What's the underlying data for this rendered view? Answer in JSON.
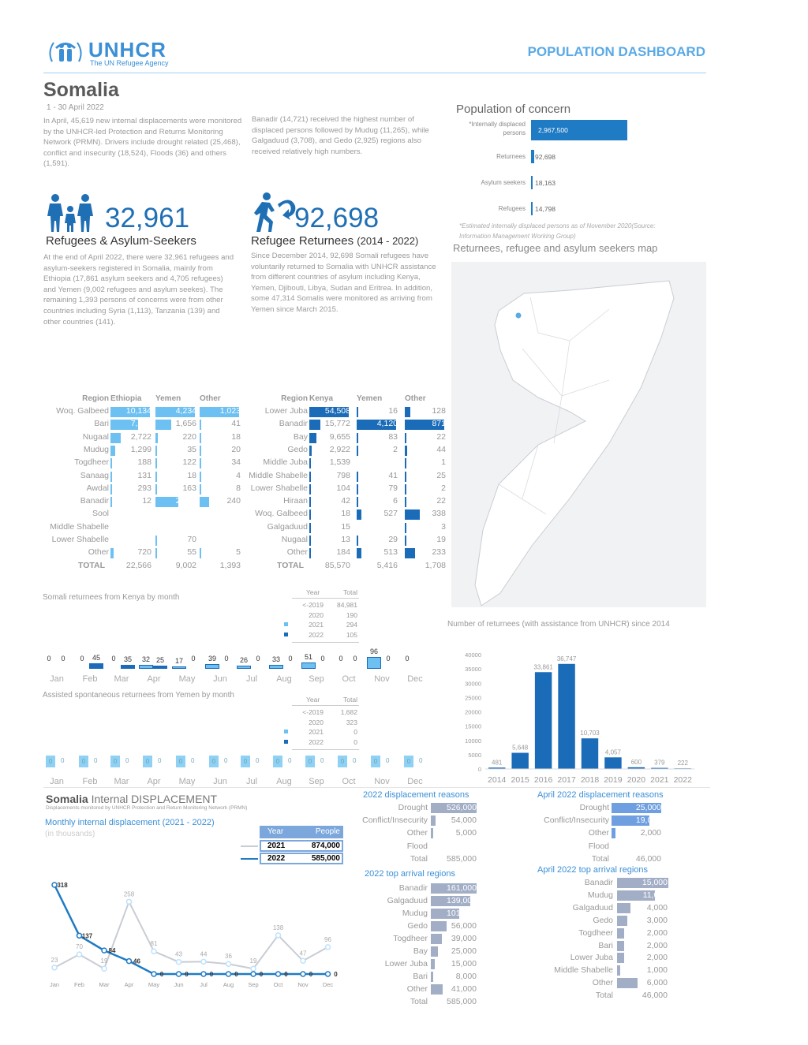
{
  "header": {
    "org": "UNHCR",
    "org_tagline": "The UN Refugee Agency",
    "dashboard_title": "POPULATION DASHBOARD"
  },
  "country": "Somalia",
  "period": "1 - 30 April 2022",
  "intro": {
    "col1": "In April, 45,619 new internal displacements were monitored by the UNHCR-led Protection and Returns Monitoring Network (PRMN). Drivers include drought related (25,468), conflict and insecurity (18,524), Floods (36) and others (1,591).",
    "col2": "Banadir (14,721) received the highest number of displaced persons followed by Mudug (11,265), while Galgaduud (3,708), and Gedo (2,925) regions also received relatively high numbers."
  },
  "stats": [
    {
      "value": "32,961",
      "title": "Refugees & Asylum-Seekers",
      "text": "At the end of April 2022, there were 32,961 refugees and asylum-seekers registered in Somalia, mainly from Ethiopia (17,861 asylum seekers and 4,705 refugees) and Yemen (9,002 refugees and asylum seekes). The remaining 1,393 persons of concerns were from other countries including Syria (1,113), Tanzania (139) and other countries (141)."
    },
    {
      "value": "92,698",
      "title": "Refugee Returnees",
      "title_suffix": "(2014 - 2022)",
      "text": "Since December 2014, 92,698 Somali refugees have voluntarily returned to Somalia with UNHCR assistance from different countries of asylum including Kenya, Yemen, Djibouti, Libya, Sudan and Eritrea. In addition, some 47,314 Somalis were monitored as arriving from Yemen since March 2015."
    }
  ],
  "population": {
    "title": "Population of concern",
    "items": [
      {
        "label": "*Internally displaced persons",
        "value": 2967500,
        "display": "2,967,500"
      },
      {
        "label": "Returnees",
        "value": 92698,
        "display": "92,698"
      },
      {
        "label": "Asylum seekers",
        "value": 18163,
        "display": "18,163"
      },
      {
        "label": "Refugees",
        "value": 14798,
        "display": "14,798"
      }
    ],
    "footnote": "*Estimated internally displaced persons as of November 2020(Source: Information Management Working Group)",
    "map_title": "Returnees, refugee and asylum seekers map"
  },
  "refugee_table": {
    "headers": [
      "Region",
      "Ethiopia",
      "Yemen",
      "Other"
    ],
    "rows": [
      [
        "Woq. Galbeed",
        10134,
        4234,
        1023
      ],
      [
        "Bari",
        7067,
        1656,
        41
      ],
      [
        "Nugaal",
        2722,
        220,
        18
      ],
      [
        "Mudug",
        1299,
        35,
        20
      ],
      [
        "Togdheer",
        188,
        122,
        34
      ],
      [
        "Sanaag",
        131,
        18,
        4
      ],
      [
        "Awdal",
        293,
        163,
        8
      ],
      [
        "Banadir",
        12,
        2427,
        240
      ],
      [
        "Sool",
        null,
        null,
        null
      ],
      [
        "Middle Shabelle",
        null,
        null,
        null
      ],
      [
        "Lower Shabelle",
        null,
        70,
        null
      ],
      [
        "Other",
        720,
        55,
        5
      ]
    ],
    "total": [
      "TOTAL",
      "22,566",
      "9,002",
      "1,393"
    ]
  },
  "returnee_table": {
    "headers": [
      "Region",
      "Kenya",
      "Yemen",
      "Other"
    ],
    "rows": [
      [
        "Lower Juba",
        54508,
        16,
        128
      ],
      [
        "Banadir",
        15772,
        4120,
        871
      ],
      [
        "Bay",
        9655,
        83,
        22
      ],
      [
        "Gedo",
        2922,
        2,
        44
      ],
      [
        "Middle Juba",
        1539,
        null,
        1
      ],
      [
        "Middle Shabelle",
        798,
        41,
        25
      ],
      [
        "Lower Shabelle",
        104,
        79,
        2
      ],
      [
        "Hiraan",
        42,
        6,
        22
      ],
      [
        "Woq. Galbeed",
        18,
        527,
        338
      ],
      [
        "Galgaduud",
        15,
        null,
        3
      ],
      [
        "Nugaal",
        13,
        29,
        19
      ],
      [
        "Other",
        184,
        513,
        233
      ]
    ],
    "total": [
      "TOTAL",
      "85,570",
      "5,416",
      "1,708"
    ]
  },
  "kenya_monthly": {
    "title": "Somali returnees from Kenya by month",
    "legend_headers": [
      "Year",
      "Total"
    ],
    "legend": [
      [
        "<-2019",
        "84,981"
      ],
      [
        "2020",
        "190"
      ],
      [
        "2021",
        "294"
      ],
      [
        "2022",
        "105"
      ]
    ],
    "months": [
      "Jan",
      "Feb",
      "Mar",
      "Apr",
      "May",
      "Jun",
      "Jul",
      "Aug",
      "Sep",
      "Oct",
      "Nov",
      "Dec"
    ],
    "y2021": [
      0,
      0,
      0,
      32,
      17,
      39,
      26,
      33,
      51,
      0,
      96,
      0
    ],
    "y2022": [
      0,
      45,
      35,
      25,
      0,
      0,
      0,
      0,
      0,
      0,
      0,
      null
    ],
    "colors": {
      "y2021": "#6cc0f2",
      "y2022": "#1a6bb8"
    }
  },
  "yemen_monthly": {
    "title": "Assisted spontaneous returnees from Yemen by month",
    "legend_headers": [
      "Year",
      "Total"
    ],
    "legend": [
      [
        "<-2019",
        "1,682"
      ],
      [
        "2020",
        "323"
      ],
      [
        "2021",
        "0"
      ],
      [
        "2022",
        "0"
      ]
    ],
    "months": [
      "Jan",
      "Feb",
      "Mar",
      "Apr",
      "May",
      "Jun",
      "Jul",
      "Aug",
      "Sep",
      "Oct",
      "Nov",
      "Dec"
    ],
    "y2021": [
      0,
      0,
      0,
      0,
      0,
      0,
      0,
      0,
      0,
      0,
      0,
      0
    ],
    "y2022": [
      0,
      0,
      0,
      0,
      0,
      0,
      0,
      0,
      0,
      0,
      0,
      0
    ]
  },
  "chart_data": [
    {
      "type": "bar",
      "title": "Number of returnees (with assistance from UNHCR) since 2014",
      "categories": [
        "2014",
        "2015",
        "2016",
        "2017",
        "2018",
        "2019",
        "2020",
        "2021",
        "2022"
      ],
      "values": [
        481,
        5648,
        33861,
        36747,
        10703,
        4057,
        600,
        379,
        222
      ],
      "labels": [
        "481",
        "5,648",
        "33,861",
        "36,747",
        "10,703",
        "4,057",
        "600",
        "379",
        "222"
      ],
      "ylim": [
        0,
        40000
      ],
      "yticks": [
        "0",
        "5000",
        "10000",
        "15000",
        "20000",
        "25000",
        "30000",
        "35000",
        "40000"
      ],
      "color": "#1a6bb8"
    },
    {
      "type": "line",
      "title": "Monthly internal displacement (2021 - 2022)",
      "ylabel": "(in thousands)",
      "x": [
        "Jan",
        "Feb",
        "Mar",
        "Apr",
        "May",
        "Jun",
        "Jul",
        "Aug",
        "Sep",
        "Oct",
        "Nov",
        "Dec"
      ],
      "series": [
        {
          "name": "2021",
          "total": "874,000",
          "values": [
            23,
            70,
            19,
            258,
            81,
            43,
            44,
            36,
            19,
            138,
            47,
            96
          ],
          "color": "#c8cdd4"
        },
        {
          "name": "2022",
          "total": "585,000",
          "values": [
            318,
            137,
            84,
            46,
            0,
            0,
            0,
            0,
            0,
            0,
            0,
            0
          ],
          "color": "#1f7bc4"
        }
      ],
      "legend_headers": [
        "Year",
        "People"
      ],
      "ylim": [
        0,
        330
      ]
    }
  ],
  "idp": {
    "title_bold": "Somalia",
    "title_rest": "Internal DISPLACEMENT",
    "subtitle": "Displacements monitored by UNHCR Protection and Return Monitoring Network (PRMN)",
    "reasons_2022": {
      "title": "2022 displacement reasons",
      "items": [
        [
          "Drought",
          526000,
          "526,000"
        ],
        [
          "Conflict/Insecurity",
          54000,
          "54,000"
        ],
        [
          "Other",
          5000,
          "5,000"
        ],
        [
          "Flood",
          0,
          ""
        ]
      ],
      "total_label": "Total",
      "total": "585,000"
    },
    "reasons_apr": {
      "title": "April 2022 displacement reasons",
      "items": [
        [
          "Drought",
          25000,
          "25,000"
        ],
        [
          "Conflict/Insecurity",
          19000,
          "19,000"
        ],
        [
          "Other",
          2000,
          "2,000"
        ],
        [
          "Flood",
          0,
          ""
        ]
      ],
      "total_label": "Total",
      "total": "46,000"
    },
    "arrival_2022": {
      "title": "2022 top arrival regions",
      "items": [
        [
          "Banadir",
          161000,
          "161,000"
        ],
        [
          "Galgaduud",
          139000,
          "139,000"
        ],
        [
          "Mudug",
          101000,
          "101,000"
        ],
        [
          "Gedo",
          56000,
          "56,000"
        ],
        [
          "Togdheer",
          39000,
          "39,000"
        ],
        [
          "Bay",
          25000,
          "25,000"
        ],
        [
          "Lower Juba",
          15000,
          "15,000"
        ],
        [
          "Bari",
          8000,
          "8,000"
        ],
        [
          "Other",
          41000,
          "41,000"
        ]
      ],
      "total_label": "Total",
      "total": "585,000"
    },
    "arrival_apr": {
      "title": "April 2022 top arrival regions",
      "items": [
        [
          "Banadir",
          15000,
          "15,000"
        ],
        [
          "Mudug",
          11000,
          "11,000"
        ],
        [
          "Galgaduud",
          4000,
          "4,000"
        ],
        [
          "Gedo",
          3000,
          "3,000"
        ],
        [
          "Togdheer",
          2000,
          "2,000"
        ],
        [
          "Bari",
          2000,
          "2,000"
        ],
        [
          "Lower Juba",
          2000,
          "2,000"
        ],
        [
          "Middle Shabelle",
          1000,
          "1,000"
        ],
        [
          "Other",
          6000,
          "6,000"
        ]
      ],
      "total_label": "Total",
      "total": "46,000"
    }
  },
  "colors": {
    "brand": "#3a8fd6",
    "left_table": "#6cc0f2",
    "right_table": "#1a6bb8",
    "slate": "#a2aec6",
    "april_reason": "#6f9fe0"
  }
}
